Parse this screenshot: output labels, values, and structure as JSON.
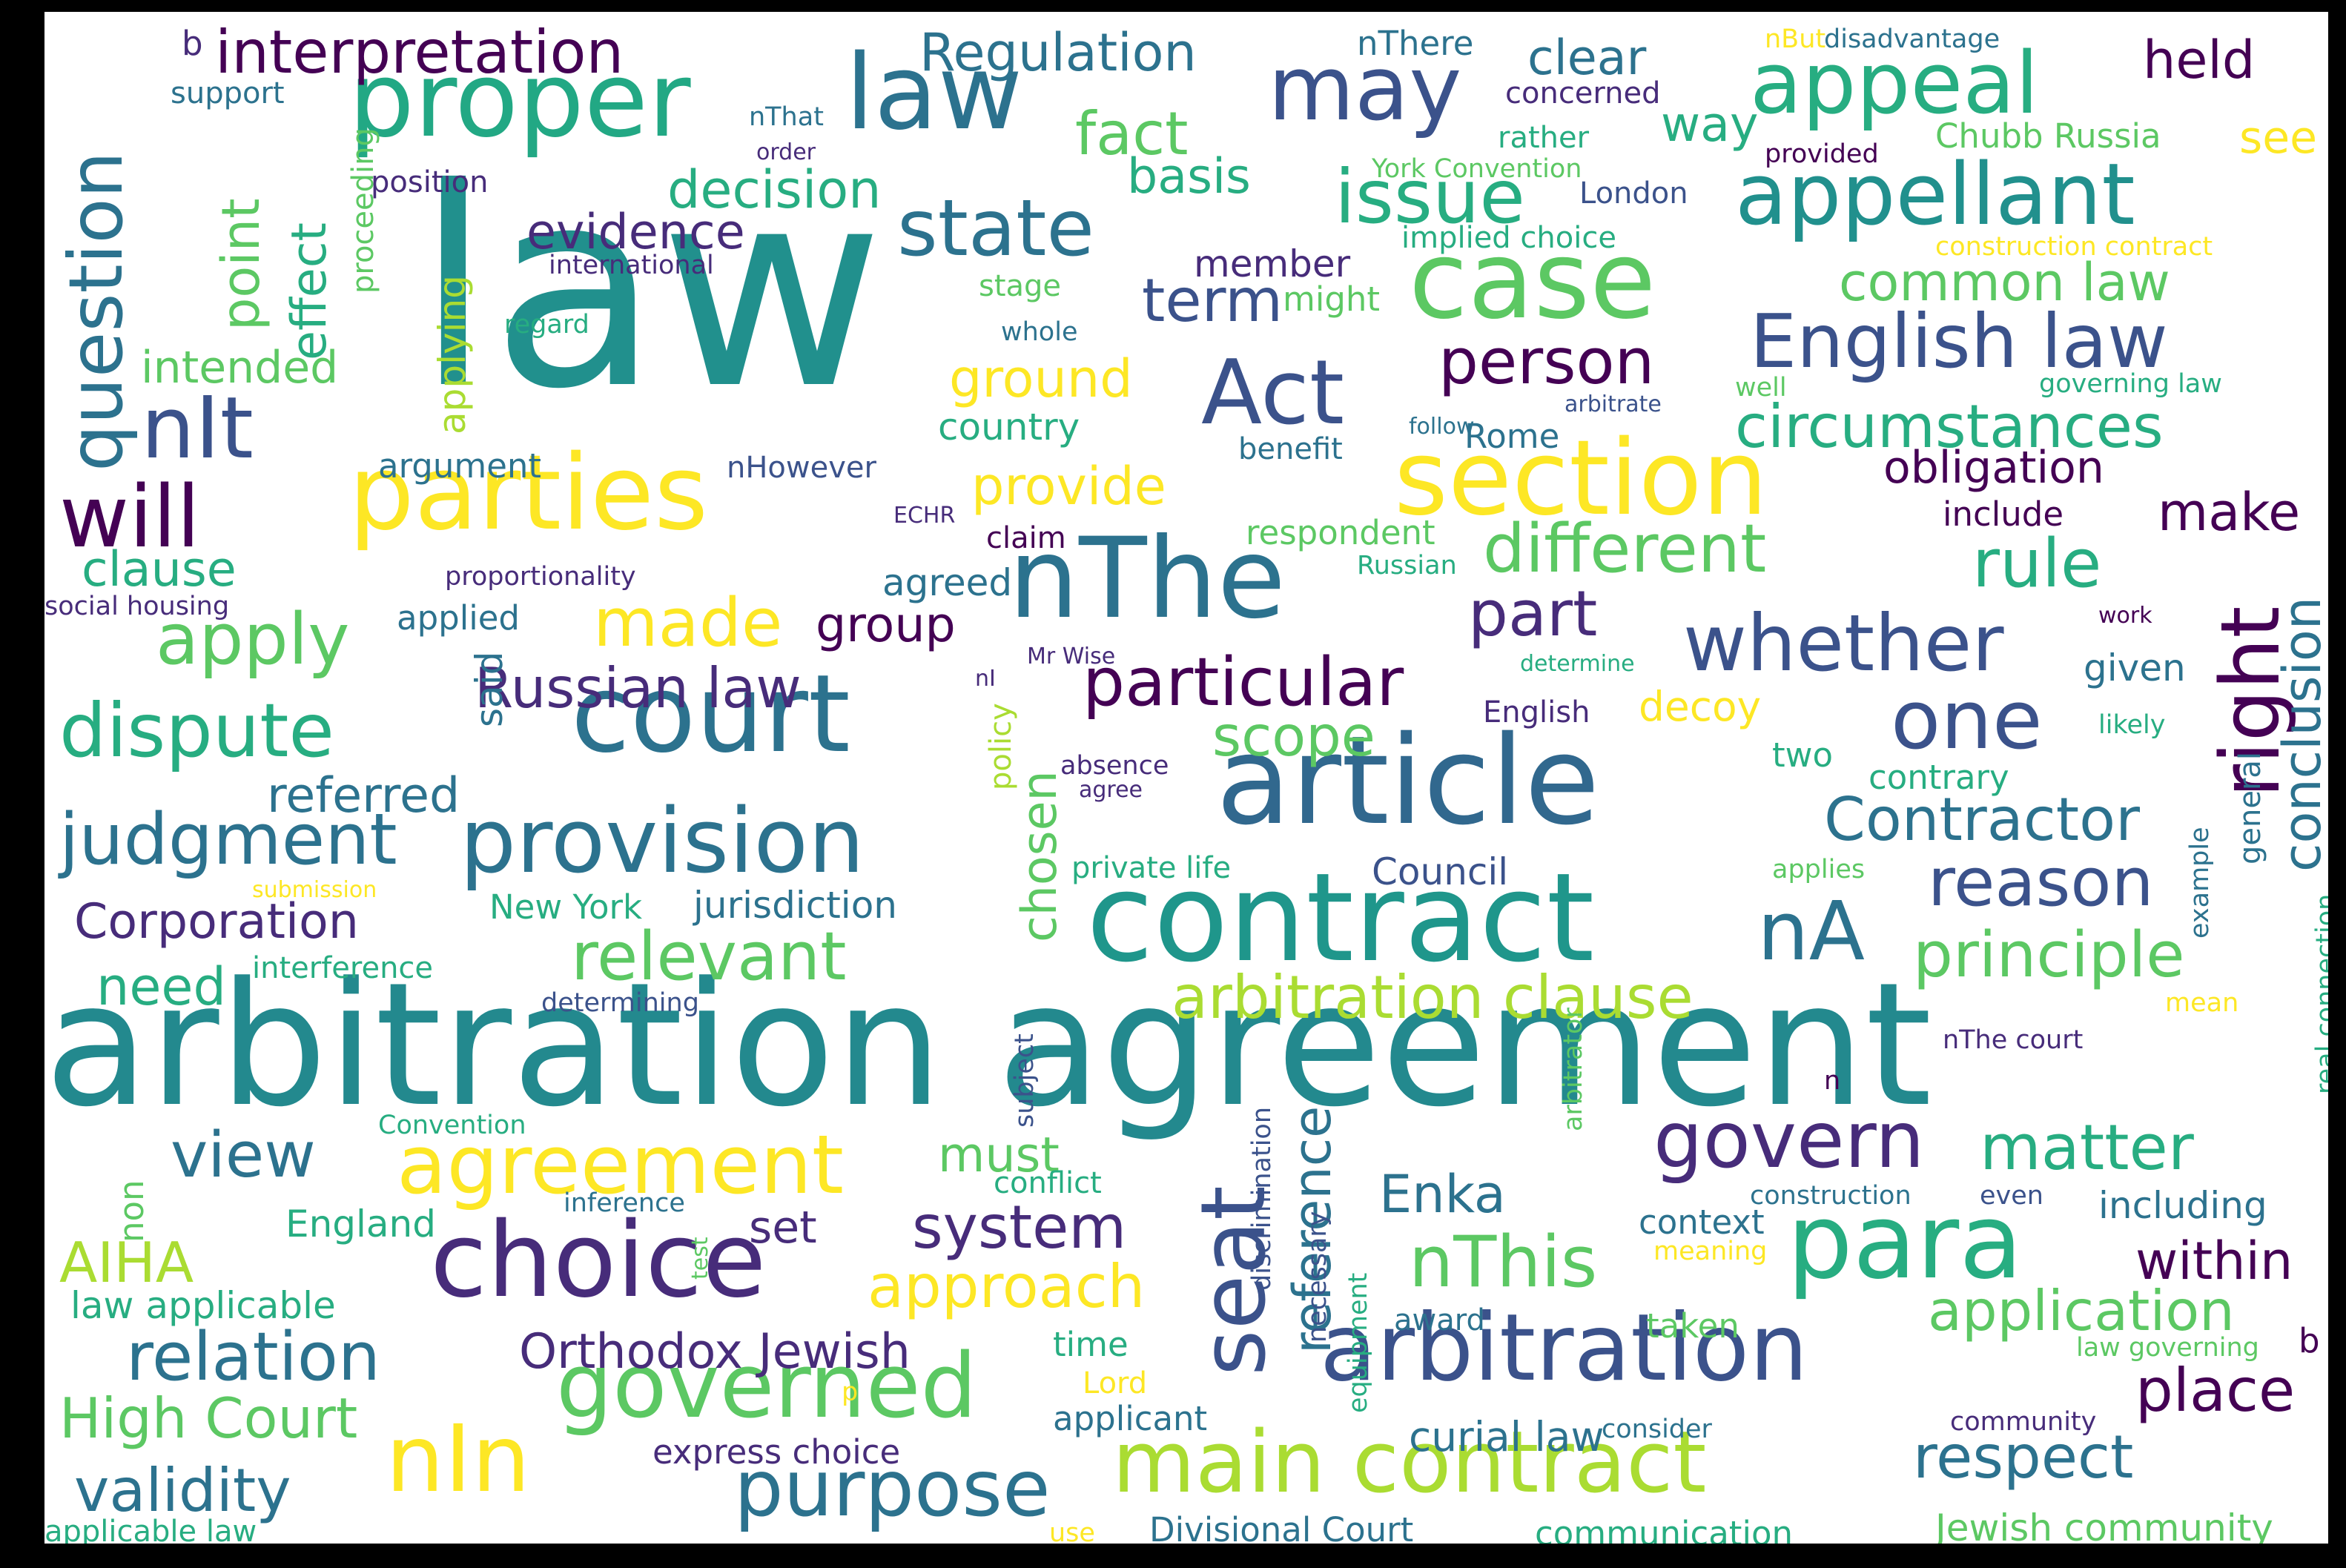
{
  "colors": {
    "c1": "#440154",
    "c2": "#472c7a",
    "c3": "#3b528b",
    "c4": "#2c728e",
    "c5": "#21908d",
    "c6": "#27ad81",
    "c7": "#5cc863",
    "c8": "#aadc32",
    "c9": "#fde725"
  },
  "words": {
    "w_law": "law",
    "w_arbitration_agreement": "arbitration agreement",
    "w_contract": "contract",
    "w_article": "article",
    "w_proper": "proper",
    "w_law2": "law",
    "w_case": "case",
    "w_parties": "parties",
    "w_court": "court",
    "w_nthe": "nThe",
    "w_section": "section",
    "w_arbitration": "arbitration",
    "w_choice": "choice",
    "w_para": "para",
    "w_appeal": "appeal",
    "w_appellant": "appellant",
    "w_may": "may",
    "w_provision": "provision",
    "w_main_contract": "main contract",
    "w_agreement": "agreement",
    "w_governed": "governed",
    "w_nin": "nIn",
    "w_seat": "seat",
    "w_english_law": "English law",
    "w_interpretation": "interpretation",
    "w_question": "question",
    "w_nit": "nIt",
    "w_will": "will",
    "w_act": "Act",
    "w_state": "state",
    "w_issue": "issue",
    "w_whether": "whether",
    "w_dispute": "dispute",
    "w_judgment": "judgment",
    "w_purpose": "purpose",
    "w_govern": "govern",
    "w_right": "right",
    "w_one": "one",
    "w_different": "different",
    "w_circumstances": "circumstances",
    "w_rule": "rule",
    "w_person": "person",
    "w_relevant": "relevant",
    "w_principle": "principle",
    "w_reason": "reason",
    "w_matter": "matter",
    "w_arbitration_clause": "arbitration clause",
    "w_na": "nA",
    "w_contractor": "Contractor",
    "w_conclusion": "conclusion",
    "w_particular": "particular",
    "w_apply": "apply",
    "w_made": "made",
    "w_russian_law": "Russian law",
    "w_part": "part",
    "w_view": "view",
    "w_relation": "relation",
    "w_high_court": "High Court",
    "w_validity": "validity",
    "w_approach": "approach",
    "w_system": "system",
    "w_nthis": "nThis",
    "w_application": "application",
    "w_respect": "respect",
    "w_place": "place",
    "w_orthodox_jewish": "Orthodox Jewish",
    "w_aiha": "AIHA",
    "w_reference": "reference",
    "w_term": "term",
    "w_common_law": "common law",
    "w_regulation": "Regulation",
    "w_held": "held",
    "w_fact": "fact",
    "w_decision": "decision",
    "w_evidence": "evidence",
    "w_ground": "ground",
    "w_provide": "provide",
    "w_point": "point",
    "w_effect": "effect",
    "w_intended": "intended",
    "w_clause": "clause",
    "w_scope": "scope",
    "w_group": "group",
    "w_referred": "referred",
    "w_chosen": "chosen",
    "w_corporation": "Corporation",
    "w_need": "need",
    "w_enka": "Enka",
    "w_must": "must",
    "w_within": "within",
    "w_make": "make",
    "w_obligation": "obligation",
    "w_set": "set",
    "w_decoy": "decoy",
    "w_clear": "clear",
    "w_way": "way",
    "w_basis": "basis",
    "w_see": "see",
    "w_including": "including",
    "w_context": "context",
    "w_curial_law": "curial law",
    "w_express_choice": "express choice",
    "w_law_applicable": "law applicable",
    "w_england": "England",
    "w_new_york": "New York",
    "w_jurisdiction": "jurisdiction",
    "w_divisional_court": "Divisional Court",
    "w_communication": "communication",
    "w_jewish_community": "Jewish community",
    "w_applicable_law": "applicable law",
    "w_rome": "Rome",
    "w_council": "Council",
    "w_agreed": "agreed",
    "w_applied": "applied",
    "w_argument": "argument",
    "w_country": "country",
    "w_member": "member",
    "w_given": "given",
    "w_nthere": "nThere",
    "w_concerned": "concerned",
    "w_rather": "rather",
    "w_london": "London",
    "w_implied_choice": "implied choice",
    "w_nthat": "nThat",
    "w_support": "support",
    "w_position": "position",
    "w_international": "international",
    "w_order": "order",
    "w_york_convention": "York Convention",
    "w_nbut": "nBut",
    "w_disadvantage": "disadvantage",
    "w_chubb_russia": "Chubb Russia",
    "w_provided": "provided",
    "w_construction_contract": "construction contract",
    "w_stage": "stage",
    "w_might": "might",
    "w_whole": "whole",
    "w_regard": "regard",
    "w_follow": "follow",
    "w_benefit": "benefit",
    "w_arbitrate": "arbitrate",
    "w_well": "well",
    "w_governing_law": "governing law",
    "w_nhowever": "nHowever",
    "w_echr": "ECHR",
    "w_claim": "claim",
    "w_respondent": "respondent",
    "w_russian": "Russian",
    "w_include": "include",
    "w_proportionality": "proportionality",
    "w_social_housing": "social housing",
    "w_said": "said",
    "w_ni": "nI",
    "w_mr_wise": "Mr Wise",
    "w_policy": "policy",
    "w_determine": "determine",
    "w_english": "English",
    "w_work": "work",
    "w_likely": "likely",
    "w_two": "two",
    "w_contrary": "contrary",
    "w_general": "general",
    "w_example": "example",
    "w_real_connection": "real connection",
    "w_absence": "absence",
    "w_agree": "agree",
    "w_private_life": "private life",
    "w_applies": "applies",
    "w_submission": "submission",
    "w_interference": "interference",
    "w_determining": "determining",
    "w_nthe_court": "nThe court",
    "w_mean": "mean",
    "w_subject": "subject",
    "w_n": "n",
    "w_arbitrator": "arbitrator",
    "w_discrimination": "discrimination",
    "w_necessary": "necessary",
    "w_equipment": "equipment",
    "w_convention": "Convention",
    "w_conflict": "conflict",
    "w_inference": "inference",
    "w_test": "test",
    "w_non": "non",
    "w_construction": "construction",
    "w_even": "even",
    "w_meaning": "meaning",
    "w_award": "award",
    "w_time": "time",
    "w_taken": "taken",
    "w_law_governing": "law governing",
    "w_lord": "Lord",
    "w_applicant": "applicant",
    "w_consider": "consider",
    "w_community": "community",
    "w_p": "p",
    "w_use": "use",
    "w_proceeding": "proceeding",
    "w_applying": "applying",
    "w_b": "b",
    "w_b2": "b"
  }
}
